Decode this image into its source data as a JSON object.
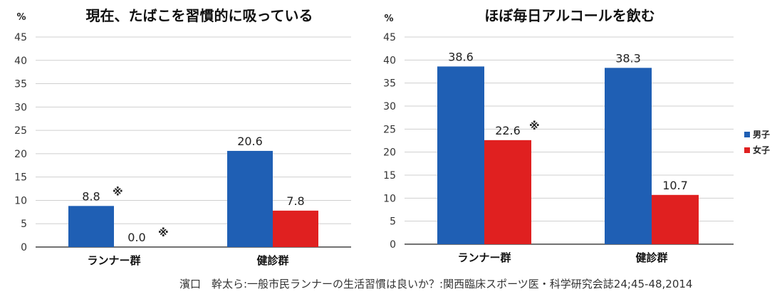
{
  "chart_data": [
    {
      "type": "bar",
      "title": "現在、たばこを習慣的に吸っている",
      "unit_label": "%",
      "ylim": [
        0,
        45
      ],
      "yticks": [
        "0",
        "5",
        "10",
        "15",
        "20",
        "25",
        "30",
        "35",
        "40",
        "45"
      ],
      "grid": true,
      "categories": [
        "ランナー群",
        "健診群"
      ],
      "series": [
        {
          "name": "男子",
          "color": "#1f5fb4",
          "values": [
            8.8,
            20.6
          ],
          "value_labels": [
            "8.8",
            "20.6"
          ],
          "marks": [
            "※",
            ""
          ]
        },
        {
          "name": "女子",
          "color": "#e02020",
          "values": [
            0.0,
            7.8
          ],
          "value_labels": [
            "0.0",
            "7.8"
          ],
          "marks": [
            "※",
            ""
          ]
        }
      ],
      "legend": "none"
    },
    {
      "type": "bar",
      "title": "ほぼ毎日アルコールを飲む",
      "unit_label": "%",
      "ylim": [
        0,
        45
      ],
      "yticks": [
        "0",
        "5",
        "10",
        "15",
        "20",
        "25",
        "30",
        "35",
        "40",
        "45"
      ],
      "grid": true,
      "categories": [
        "ランナー群",
        "健診群"
      ],
      "series": [
        {
          "name": "男子",
          "color": "#1f5fb4",
          "values": [
            38.6,
            38.3
          ],
          "value_labels": [
            "38.6",
            "38.3"
          ],
          "marks": [
            "",
            ""
          ]
        },
        {
          "name": "女子",
          "color": "#e02020",
          "values": [
            22.6,
            10.7
          ],
          "value_labels": [
            "22.6",
            "10.7"
          ],
          "marks": [
            "※",
            ""
          ]
        }
      ],
      "legend": "right"
    }
  ],
  "source": "濱口　幹太ら:一般市民ランナーの生活習慣は良いか？:関西臨床スポーツ医・科学研究会誌24;45-48,2014"
}
